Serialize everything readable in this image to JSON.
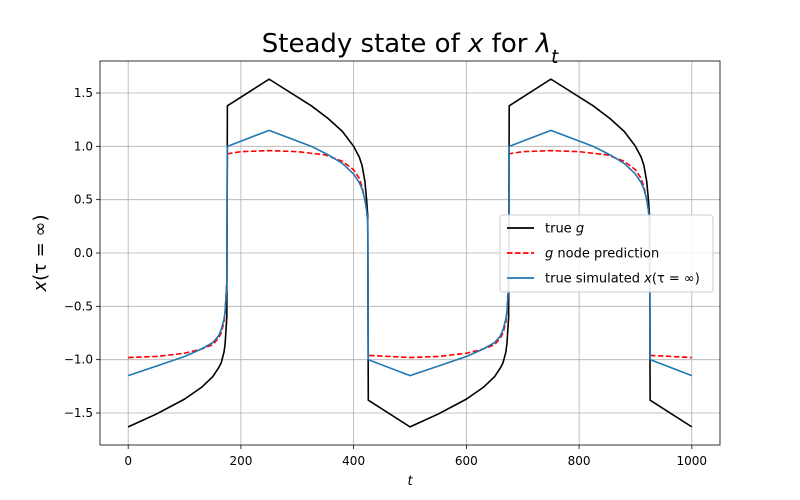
{
  "chart_data": {
    "type": "line",
    "title": "Steady state of x for λ_t",
    "title_parts": [
      {
        "text": "Steady state of ",
        "italic": false
      },
      {
        "text": "x",
        "italic": true
      },
      {
        "text": " for ",
        "italic": false
      },
      {
        "text": "λ",
        "italic": true
      },
      {
        "text": "t",
        "italic": true,
        "sub": true
      }
    ],
    "xlabel": "t",
    "ylabel": "x(τ = ∞)",
    "xlim": [
      -50,
      1050
    ],
    "ylim": [
      -1.8,
      1.8
    ],
    "xticks": [
      0,
      200,
      400,
      600,
      800,
      1000
    ],
    "xtick_labels": [
      "0",
      "200",
      "400",
      "600",
      "800",
      "1000"
    ],
    "yticks": [
      -1.5,
      -1.0,
      -0.5,
      0.0,
      0.5,
      1.0,
      1.5
    ],
    "ytick_labels": [
      "−1.5",
      "−1.0",
      "−0.5",
      "0.0",
      "0.5",
      "1.0",
      "1.5"
    ],
    "grid": true,
    "legend_position": "center-right",
    "series": [
      {
        "name": "true g",
        "legend_label": [
          {
            "text": "true ",
            "italic": false
          },
          {
            "text": "g",
            "italic": true
          }
        ],
        "color": "#000000",
        "dash": "solid",
        "x": [
          0,
          50,
          100,
          130,
          150,
          160,
          165,
          170,
          172,
          175,
          176,
          250,
          325,
          355,
          380,
          400,
          410,
          415,
          420,
          423,
          425,
          426,
          500,
          550,
          600,
          630,
          650,
          660,
          665,
          670,
          672,
          675,
          676,
          750,
          825,
          855,
          880,
          900,
          910,
          915,
          920,
          923,
          925,
          926,
          1000
        ],
        "y": [
          -1.63,
          -1.51,
          -1.37,
          -1.26,
          -1.16,
          -1.08,
          -1.03,
          -0.93,
          -0.85,
          -0.6,
          1.38,
          1.63,
          1.38,
          1.26,
          1.14,
          1.0,
          0.9,
          0.82,
          0.67,
          0.5,
          0.35,
          -1.38,
          -1.63,
          -1.51,
          -1.37,
          -1.26,
          -1.16,
          -1.08,
          -1.03,
          -0.93,
          -0.85,
          -0.6,
          1.38,
          1.63,
          1.38,
          1.26,
          1.14,
          1.0,
          0.9,
          0.82,
          0.67,
          0.5,
          0.35,
          -1.38,
          -1.63
        ]
      },
      {
        "name": "g node prediction",
        "legend_label": [
          {
            "text": "g",
            "italic": true
          },
          {
            "text": " node prediction",
            "italic": false
          }
        ],
        "color": "#ff0000",
        "dash": "dashed",
        "x": [
          0,
          50,
          100,
          130,
          150,
          160,
          165,
          170,
          172,
          175,
          176,
          200,
          250,
          300,
          350,
          380,
          400,
          410,
          415,
          420,
          423,
          425,
          426,
          500,
          550,
          600,
          630,
          650,
          660,
          665,
          670,
          672,
          675,
          676,
          700,
          750,
          800,
          850,
          880,
          900,
          910,
          915,
          920,
          923,
          925,
          926,
          1000
        ],
        "y": [
          -0.98,
          -0.97,
          -0.94,
          -0.9,
          -0.86,
          -0.8,
          -0.75,
          -0.65,
          -0.55,
          -0.25,
          0.93,
          0.95,
          0.96,
          0.95,
          0.92,
          0.86,
          0.78,
          0.7,
          0.62,
          0.5,
          0.4,
          0.3,
          -0.96,
          -0.98,
          -0.97,
          -0.94,
          -0.9,
          -0.86,
          -0.8,
          -0.75,
          -0.65,
          -0.55,
          -0.25,
          0.93,
          0.95,
          0.96,
          0.95,
          0.92,
          0.86,
          0.78,
          0.7,
          0.62,
          0.5,
          0.4,
          0.3,
          -0.96,
          -0.98
        ]
      },
      {
        "name": "true simulated x(τ = ∞)",
        "legend_label": [
          {
            "text": "true simulated ",
            "italic": false
          },
          {
            "text": "x",
            "italic": true
          },
          {
            "text": "(τ = ∞)",
            "italic": false
          }
        ],
        "color": "#1f77b4",
        "dash": "solid",
        "x": [
          0,
          50,
          100,
          130,
          150,
          160,
          165,
          170,
          172,
          175,
          176,
          250,
          325,
          355,
          380,
          400,
          410,
          415,
          420,
          423,
          425,
          426,
          500,
          550,
          600,
          630,
          650,
          660,
          665,
          670,
          672,
          675,
          676,
          750,
          825,
          855,
          880,
          900,
          910,
          915,
          920,
          923,
          925,
          926,
          1000
        ],
        "y": [
          -1.15,
          -1.06,
          -0.97,
          -0.9,
          -0.84,
          -0.78,
          -0.72,
          -0.62,
          -0.55,
          -0.3,
          1.0,
          1.15,
          1.0,
          0.92,
          0.84,
          0.74,
          0.66,
          0.6,
          0.5,
          0.4,
          0.3,
          -1.0,
          -1.15,
          -1.06,
          -0.97,
          -0.9,
          -0.84,
          -0.78,
          -0.72,
          -0.62,
          -0.55,
          -0.3,
          1.0,
          1.15,
          1.0,
          0.92,
          0.84,
          0.74,
          0.66,
          0.6,
          0.5,
          0.4,
          0.3,
          -1.0,
          -1.15
        ]
      }
    ]
  }
}
